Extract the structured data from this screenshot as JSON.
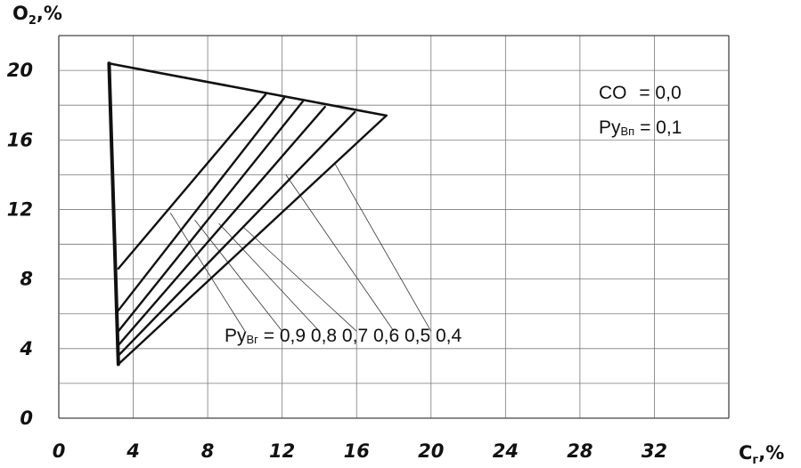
{
  "chart_data": {
    "type": "line",
    "title": "",
    "xlabel": {
      "main": "C",
      "sub": "г",
      "unit": ",%"
    },
    "ylabel": {
      "main": "O",
      "sub": "2",
      "unit": ",%"
    },
    "xlim": [
      0,
      36
    ],
    "ylim": [
      0,
      22
    ],
    "x_ticks": [
      0,
      4,
      8,
      12,
      16,
      20,
      24,
      28,
      32
    ],
    "x_tick_labels": [
      "0",
      "4",
      "8",
      "12",
      "16",
      "20",
      "24",
      "28",
      "32"
    ],
    "y_ticks": [
      0,
      4,
      8,
      12,
      16,
      20
    ],
    "y_tick_labels": [
      "0",
      "4",
      "8",
      "12",
      "16",
      "20"
    ],
    "grid": true,
    "boundary": {
      "apex": [
        2.7,
        20.4
      ],
      "right_vertex": [
        17.6,
        17.4
      ],
      "bottom_vertex": [
        3.2,
        3.1
      ]
    },
    "series": [
      {
        "name": "0,9",
        "x": [
          3.2,
          11.1
        ],
        "y": [
          8.6,
          18.6
        ]
      },
      {
        "name": "0,8",
        "x": [
          3.2,
          12.1
        ],
        "y": [
          6.2,
          18.4
        ]
      },
      {
        "name": "0,7",
        "x": [
          3.2,
          13.1
        ],
        "y": [
          5.0,
          18.2
        ]
      },
      {
        "name": "0,6",
        "x": [
          3.2,
          14.3
        ],
        "y": [
          4.2,
          17.9
        ]
      },
      {
        "name": "0,5",
        "x": [
          3.2,
          15.9
        ],
        "y": [
          3.6,
          17.6
        ]
      },
      {
        "name": "0,4",
        "x": [
          3.2,
          17.6
        ],
        "y": [
          3.1,
          17.4
        ]
      }
    ],
    "leaders": [
      {
        "from": [
          6.0,
          11.8
        ],
        "to": [
          10.0,
          5.0
        ]
      },
      {
        "from": [
          7.3,
          11.4
        ],
        "to": [
          12.0,
          5.0
        ]
      },
      {
        "from": [
          8.6,
          11.2
        ],
        "to": [
          14.0,
          5.0
        ]
      },
      {
        "from": [
          9.9,
          11.0
        ],
        "to": [
          16.0,
          5.0
        ]
      },
      {
        "from": [
          12.2,
          14.0
        ],
        "to": [
          18.0,
          5.0
        ]
      },
      {
        "from": [
          14.8,
          14.7
        ],
        "to": [
          20.0,
          5.0
        ]
      }
    ],
    "annotations": {
      "legend_lines": [
        {
          "main": "CO",
          "sub": "",
          "value": " = 0,0"
        },
        {
          "main": "Py",
          "sub": "Вп",
          "value": " = 0,1"
        }
      ],
      "series_caption": {
        "main": "Py",
        "sub": "Вг",
        "values": " = 0,9  0,8  0,7  0,6  0,5  0,4"
      }
    }
  }
}
